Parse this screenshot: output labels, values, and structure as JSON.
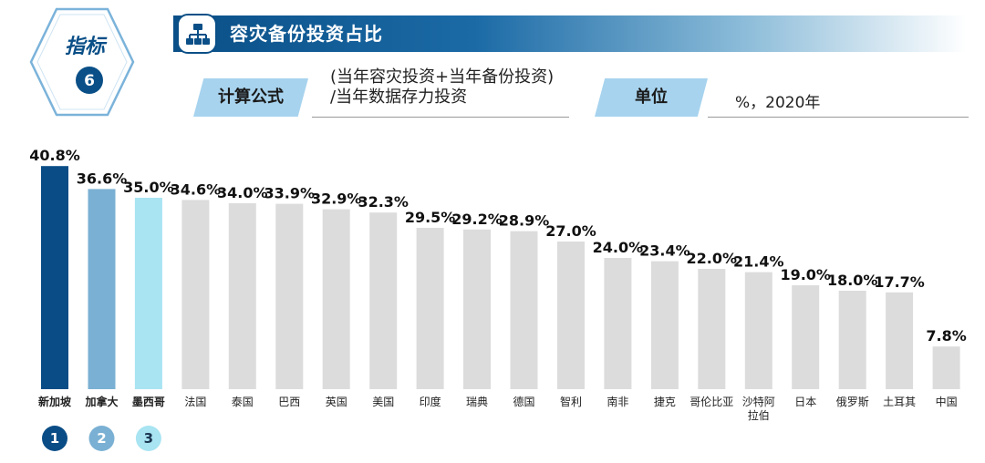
{
  "header": {
    "badge": {
      "label": "指标",
      "number": "6"
    },
    "title": "容灾备份投资占比",
    "formula_label": "计算公式",
    "formula_lines": [
      "(当年容灾投资+当年备份投资)",
      "/当年数据存力投资"
    ],
    "unit_label": "单位",
    "unit_value": "%，2020年"
  },
  "colors": {
    "rank1": "#0a4d86",
    "rank2": "#7ab0d3",
    "rank3": "#a8e4f2",
    "other": "#dcdcdc",
    "title_bar": "#0a4f87",
    "tag": "#a7d3ee"
  },
  "chart_data": {
    "type": "bar",
    "title": "容灾备份投资占比",
    "unit": "%",
    "ylim": [
      0,
      45
    ],
    "categories": [
      [
        "新加坡"
      ],
      [
        "加拿大"
      ],
      [
        "墨西哥"
      ],
      [
        "法国"
      ],
      [
        "泰国"
      ],
      [
        "巴西"
      ],
      [
        "英国"
      ],
      [
        "美国"
      ],
      [
        "印度"
      ],
      [
        "瑞典"
      ],
      [
        "德国"
      ],
      [
        "智利"
      ],
      [
        "南非"
      ],
      [
        "捷克"
      ],
      [
        "哥伦比亚"
      ],
      [
        "沙特阿",
        "拉伯"
      ],
      [
        "日本"
      ],
      [
        "俄罗斯"
      ],
      [
        "土耳其"
      ],
      [
        "中国"
      ]
    ],
    "values": [
      40.8,
      36.6,
      35.0,
      34.6,
      34.0,
      33.9,
      32.9,
      32.3,
      29.5,
      29.2,
      28.9,
      27.0,
      24.0,
      23.4,
      22.0,
      21.4,
      19.0,
      18.0,
      17.7,
      7.8
    ],
    "value_labels": [
      "40.8%",
      "36.6%",
      "35.0%",
      "34.6%",
      "34.0%",
      "33.9%",
      "32.9%",
      "32.3%",
      "29.5%",
      "29.2%",
      "28.9%",
      "27.0%",
      "24.0%",
      "23.4%",
      "22.0%",
      "21.4%",
      "19.0%",
      "18.0%",
      "17.7%",
      "7.8%"
    ],
    "ranks": [
      "1",
      "2",
      "3"
    ]
  }
}
